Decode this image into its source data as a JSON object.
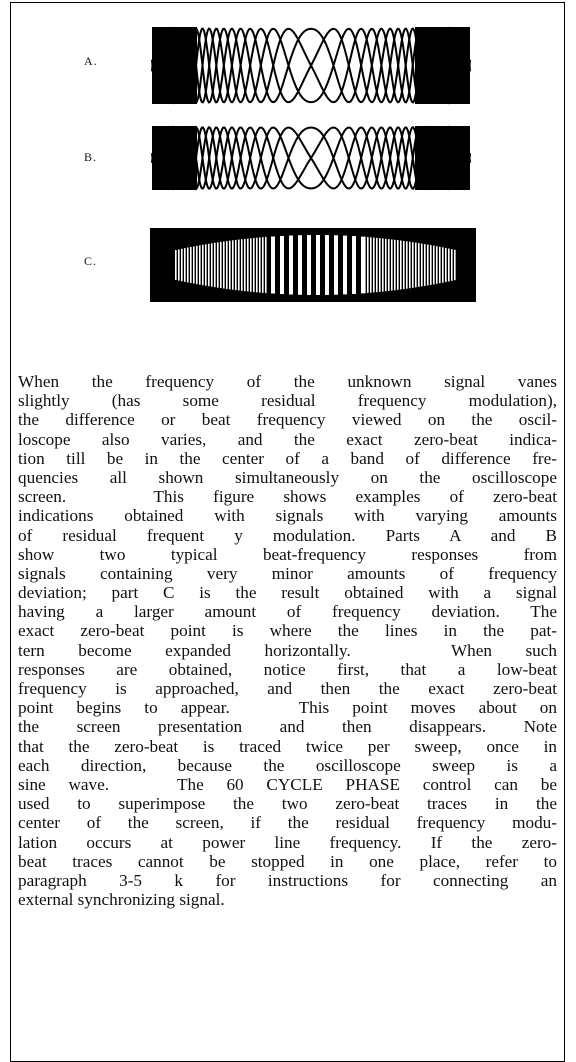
{
  "figure": {
    "labels": [
      "A.",
      "B.",
      "C."
    ]
  },
  "paragraph": {
    "lines": [
      "When the frequency of the unknown signal vanes",
      "slightly (has some residual frequency modulation),",
      "the difference or beat frequency viewed on the oscil-",
      "loscope also varies, and the exact zero-beat indica-",
      "tion till be in the center of a band of difference fre-",
      "quencies all shown simultaneously on the oscilloscope",
      "screen.   This figure shows examples of zero-beat",
      "indications obtained with signals with varying amounts",
      "of residual frequent y modulation. Parts A and B",
      "show two typical beat-frequency responses from",
      "signals containing very minor amounts of frequency",
      "deviation; part C is the result obtained with a signal",
      "having a larger amount of frequency deviation. The",
      "exact zero-beat point is where the lines in the pat-",
      "tern become expanded horizontally.   When such",
      "responses are obtained, notice first, that a low-beat",
      "frequency is approached, and then the exact zero-beat",
      "point begins to appear.   This point moves about on",
      "the screen presentation and then disappears. Note",
      "that the zero-beat is traced twice per sweep, once in",
      "each direction, because the oscilloscope sweep is a",
      "sine wave.   The 60 CYCLE PHASE control can be",
      "used to superimpose the two zero-beat traces in the",
      "center of the screen, if the residual frequency modu-",
      "lation occurs at power line frequency. If the zero-",
      "beat traces cannot be stopped in one place, refer to",
      "paragraph 3-5 k for instructions for connecting an",
      "external synchronizing signal."
    ]
  }
}
